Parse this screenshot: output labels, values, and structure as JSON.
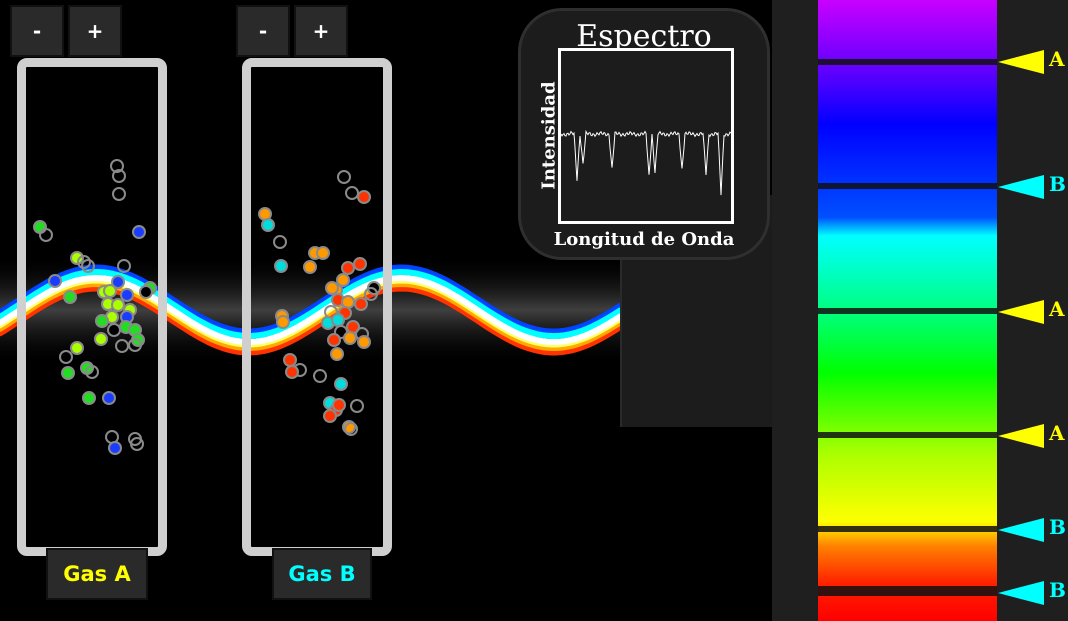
{
  "chamber_a": {
    "minus_label": "-",
    "plus_label": "+",
    "gas_label": "Gas A",
    "label_color": "#ffff00"
  },
  "chamber_b": {
    "minus_label": "-",
    "plus_label": "+",
    "gas_label": "Gas B",
    "label_color": "#00ffff"
  },
  "spectrum": {
    "title": "Espectro",
    "xlabel": "Longitud de Onda",
    "ylabel": "Intensidad"
  },
  "absorption_markers": [
    {
      "label": "A",
      "color": "#ffff00"
    },
    {
      "label": "B",
      "color": "#00ffff"
    },
    {
      "label": "A",
      "color": "#ffff00"
    },
    {
      "label": "A",
      "color": "#ffff00"
    },
    {
      "label": "B",
      "color": "#00ffff"
    },
    {
      "label": "B",
      "color": "#00ffff"
    }
  ]
}
